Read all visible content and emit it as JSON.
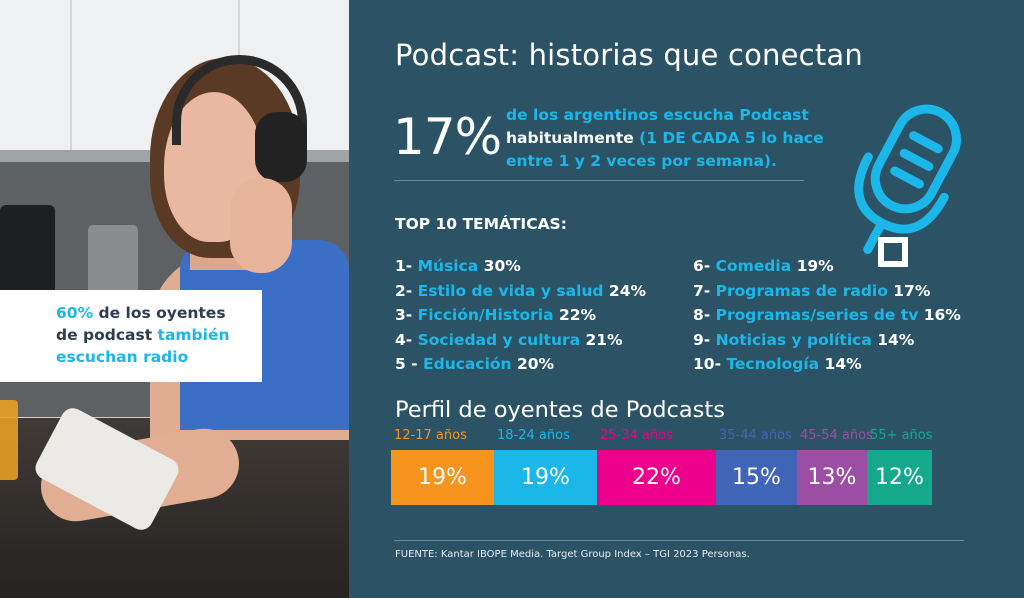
{
  "overlay": {
    "pct": "60%",
    "text_1": " de los oyentes de podcast ",
    "text_2": "también escuchan radio"
  },
  "header": {
    "title": "Podcast: historias que conectan"
  },
  "headline": {
    "big_pct": "17%",
    "lead_1": "de los argentinos escucha Podcast",
    "lead_2": "habitualmente ",
    "lead_3": "(1 DE CADA 5 lo hace entre 1 y 2 veces por semana)."
  },
  "themes": {
    "heading": "TOP 10 TEMÁTICAS:",
    "items": [
      {
        "prefix": "1- ",
        "name": "Música",
        "pct": " 30%"
      },
      {
        "prefix": "2- ",
        "name": "Estilo de vida y salud",
        "pct": " 24%"
      },
      {
        "prefix": "3- ",
        "name": "Ficción/Historia",
        "pct": " 22%"
      },
      {
        "prefix": "4- ",
        "name": "Sociedad y cultura",
        "pct": " 21%"
      },
      {
        "prefix": "5 - ",
        "name": "Educación",
        "pct": " 20%"
      },
      {
        "prefix": "6- ",
        "name": "Comedia",
        "pct": " 19%"
      },
      {
        "prefix": "7- ",
        "name": "Programas de radio",
        "pct": " 17%"
      },
      {
        "prefix": "8- ",
        "name": "Programas/series de tv",
        "pct": " 16%"
      },
      {
        "prefix": "9- ",
        "name": "Noticias y política",
        "pct": " 14%"
      },
      {
        "prefix": "10- ",
        "name": "Tecnología",
        "pct": " 14%"
      }
    ]
  },
  "chart_data": {
    "type": "bar",
    "title": "Perfil de oyentes de Podcasts",
    "orientation": "horizontal-stacked-100",
    "categories": [
      "12-17 años",
      "18-24 años",
      "25-34 años",
      "35-44 años",
      "45-54 años",
      "55+ años"
    ],
    "values": [
      19,
      19,
      22,
      15,
      13,
      12
    ],
    "labels": [
      "19%",
      "19%",
      "22%",
      "15%",
      "13%",
      "12%"
    ],
    "colors": [
      "#f7941d",
      "#1ab7e8",
      "#ec008c",
      "#3f64b8",
      "#9b4ea3",
      "#15a88b"
    ],
    "label_colors": [
      "#f7941d",
      "#1ab7e8",
      "#ec008c",
      "#3f64b8",
      "#9b4ea3",
      "#15a88b"
    ]
  },
  "footer": {
    "source": "FUENTE: Kantar IBOPE Media. Target Group Index – TGI 2023 Personas."
  }
}
